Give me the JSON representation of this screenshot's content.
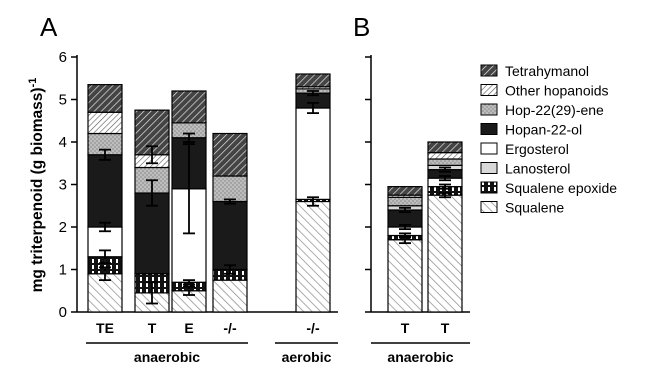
{
  "chart_data": {
    "type": "bar",
    "stacked": true,
    "ylabel": "mg triterpenoid (g biomass)",
    "ylabel_sup": "-1",
    "ylim": [
      0,
      6
    ],
    "yticks": [
      0,
      1,
      2,
      3,
      4,
      5,
      6
    ],
    "legend_position": "right",
    "panels": [
      {
        "label": "A",
        "bars": [
          {
            "category": "TE",
            "group": "anaerobic",
            "values": [
              0.9,
              0.4,
              0.7,
              1.7,
              0.0,
              0.5,
              0.5,
              0.65
            ],
            "errors": [
              0.15,
              0.15,
              0.1,
              0.12,
              0,
              0,
              0,
              0
            ]
          },
          {
            "category": "T",
            "group": "anaerobic",
            "values": [
              0.45,
              0.45,
              0.0,
              1.9,
              0.0,
              0.6,
              0.3,
              1.05
            ],
            "errors": [
              0.25,
              0.0,
              0.0,
              0.3,
              0,
              0,
              0.2,
              0
            ]
          },
          {
            "category": "E",
            "group": "anaerobic",
            "values": [
              0.5,
              0.2,
              2.2,
              1.2,
              0.0,
              0.35,
              0.0,
              0.75
            ],
            "errors": [
              0.1,
              0.05,
              1.05,
              0.1,
              0,
              0,
              0,
              0
            ]
          },
          {
            "category": "-/-",
            "group": "anaerobic",
            "values": [
              0.75,
              0.25,
              0.0,
              1.6,
              0.0,
              0.6,
              0.0,
              1.0
            ],
            "errors": [
              0,
              0.1,
              0.0,
              0.05,
              0,
              0,
              0,
              0
            ]
          },
          {
            "category": "-/-",
            "group": "aerobic",
            "values": [
              2.6,
              0.05,
              2.15,
              0.35,
              0.0,
              0.1,
              0.05,
              0.3
            ],
            "errors": [
              0.1,
              0,
              0.12,
              0.05,
              0,
              0,
              0,
              0
            ]
          }
        ]
      },
      {
        "label": "B",
        "bars": [
          {
            "category": "T",
            "group": "anaerobic",
            "values": [
              1.7,
              0.1,
              0.2,
              0.4,
              0.1,
              0.2,
              0.05,
              0.2
            ],
            "errors": [
              0.08,
              0.05,
              0.05,
              0.05,
              0,
              0,
              0,
              0
            ]
          },
          {
            "category": "T",
            "group": "anaerobic",
            "values": [
              2.75,
              0.2,
              0.2,
              0.2,
              0.1,
              0.15,
              0.15,
              0.25
            ],
            "errors": [
              0.05,
              0.05,
              0.05,
              0.05,
              0,
              0,
              0,
              0.0
            ]
          }
        ]
      }
    ],
    "series": [
      {
        "name": "Squalene",
        "fill": "hatch-light"
      },
      {
        "name": "Squalene epoxide",
        "fill": "dash-black"
      },
      {
        "name": "Ergosterol",
        "fill": "white"
      },
      {
        "name": "Hopan-22-ol",
        "fill": "black"
      },
      {
        "name": "Lanosterol",
        "fill": "light-gray"
      },
      {
        "name": "Hop-22(29)-ene",
        "fill": "dots-gray"
      },
      {
        "name": "Other hopanoids",
        "fill": "hatch-dense"
      },
      {
        "name": "Tetrahymanol",
        "fill": "hatch-dark"
      }
    ],
    "legend_order": [
      "Tetrahymanol",
      "Other hopanoids",
      "Hop-22(29)-ene",
      "Hopan-22-ol",
      "Ergosterol",
      "Lanosterol",
      "Squalene epoxide",
      "Squalene"
    ],
    "groups_a": [
      "anaerobic",
      "aerobic"
    ],
    "groups_b": [
      "anaerobic"
    ]
  }
}
